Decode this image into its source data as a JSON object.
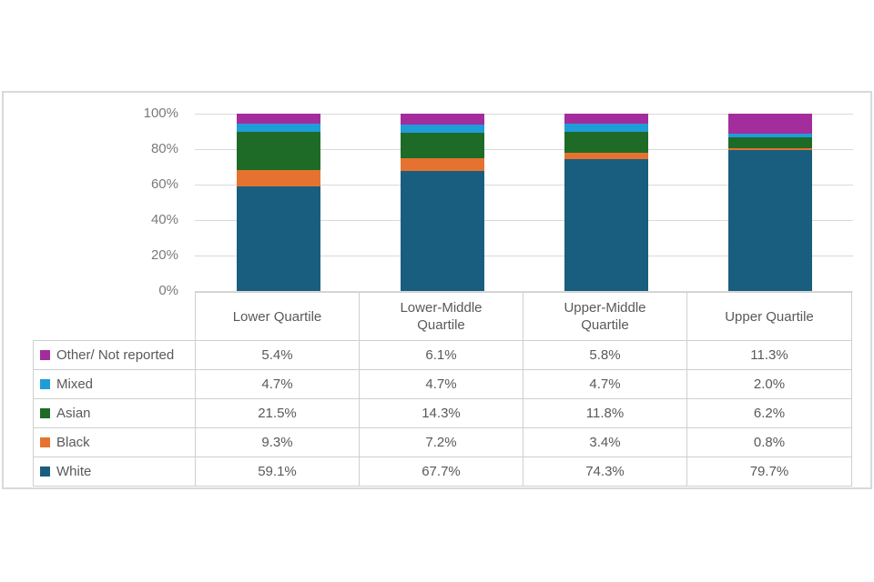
{
  "figure": {
    "background": "#ffffff",
    "panel_border_color": "#d9d9d9"
  },
  "chart_data": {
    "type": "bar",
    "subtype": "stacked-100-percent-column",
    "title": "",
    "xlabel": "",
    "ylabel": "",
    "categories": [
      "Lower Quartile",
      "Lower-Middle Quartile",
      "Upper-Middle Quartile",
      "Upper Quartile"
    ],
    "series": [
      {
        "name": "Other/ Not reported",
        "color": "#a32d9c",
        "values": [
          5.4,
          6.1,
          5.8,
          11.3
        ],
        "display": [
          "5.4%",
          "6.1%",
          "5.8%",
          "11.3%"
        ]
      },
      {
        "name": "Mixed",
        "color": "#1f9dd8",
        "values": [
          4.7,
          4.7,
          4.7,
          2.0
        ],
        "display": [
          "4.7%",
          "4.7%",
          "4.7%",
          "2.0%"
        ]
      },
      {
        "name": "Asian",
        "color": "#1e6b28",
        "values": [
          21.5,
          14.3,
          11.8,
          6.2
        ],
        "display": [
          "21.5%",
          "14.3%",
          "11.8%",
          "6.2%"
        ]
      },
      {
        "name": "Black",
        "color": "#e5732f",
        "values": [
          9.3,
          7.2,
          3.4,
          0.8
        ],
        "display": [
          "9.3%",
          "7.2%",
          "3.4%",
          "0.8%"
        ]
      },
      {
        "name": "White",
        "color": "#195e7e",
        "values": [
          59.1,
          67.7,
          74.3,
          79.7
        ],
        "display": [
          "59.1%",
          "67.7%",
          "74.3%",
          "79.7%"
        ]
      }
    ],
    "stack_order_bottom_to_top": [
      "White",
      "Black",
      "Asian",
      "Mixed",
      "Other/ Not reported"
    ],
    "y_axis": {
      "ticks": [
        "100%",
        "80%",
        "60%",
        "40%",
        "20%",
        "0%"
      ],
      "lim": [
        0,
        100
      ],
      "grid": true,
      "tick_color": "#7a7a7a",
      "gridline_color": "#d9d9d9"
    },
    "legend_position": "table-left-column",
    "table_style": {
      "border_color": "#cfcfcf",
      "text_color": "#595959"
    }
  }
}
